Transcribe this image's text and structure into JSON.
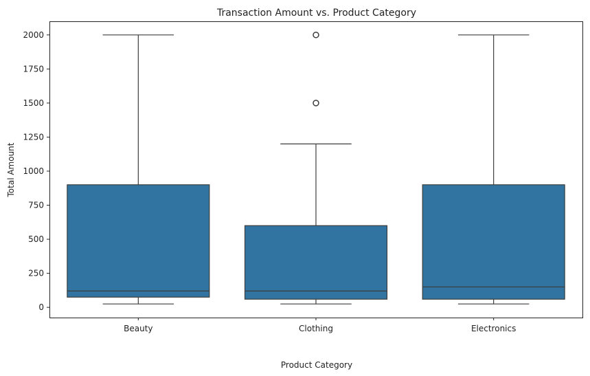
{
  "chart_data": {
    "type": "boxplot",
    "title": "Transaction Amount vs. Product Category",
    "xlabel": "Product Category",
    "ylabel": "Total Amount",
    "categories": [
      "Beauty",
      "Clothing",
      "Electronics"
    ],
    "ylim": [
      -75,
      2100
    ],
    "yticks": [
      0,
      250,
      500,
      750,
      1000,
      1250,
      1500,
      1750,
      2000
    ],
    "grid": false,
    "legend": "none",
    "box_color": "#3274a1",
    "line_color": "#3d3d3d",
    "boxes": [
      {
        "category": "Beauty",
        "whisker_low": 25,
        "q1": 75,
        "median": 120,
        "q3": 900,
        "whisker_high": 2000,
        "outliers": []
      },
      {
        "category": "Clothing",
        "whisker_low": 25,
        "q1": 60,
        "median": 120,
        "q3": 600,
        "whisker_high": 1200,
        "outliers": [
          1500,
          2000
        ]
      },
      {
        "category": "Electronics",
        "whisker_low": 25,
        "q1": 60,
        "median": 150,
        "q3": 900,
        "whisker_high": 2000,
        "outliers": []
      }
    ]
  }
}
